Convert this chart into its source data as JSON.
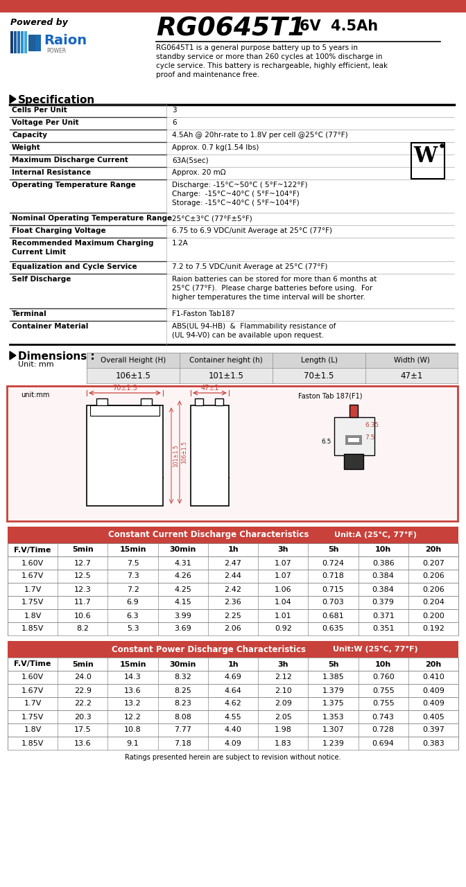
{
  "bg_color": "#ffffff",
  "red_bar_color": "#c8413a",
  "table_header_bg": "#c8413a",
  "dim_box_border": "#c8413a",
  "title_model": "RG0645T1",
  "title_voltage": "6V  4.5Ah",
  "powered_by": "Powered by",
  "description": "RG0645T1 is a general purpose battery up to 5 years in\nstandby service or more than 260 cycles at 100% discharge in\ncycle service. This battery is rechargeable, highly efficient, leak\nproof and maintenance free.",
  "spec_title": "Specification",
  "spec_rows": [
    [
      "Cells Per Unit",
      "3"
    ],
    [
      "Voltage Per Unit",
      "6"
    ],
    [
      "Capacity",
      "4.5Ah @ 20hr-rate to 1.8V per cell @25°C (77°F)"
    ],
    [
      "Weight",
      "Approx. 0.7 kg(1.54 lbs)"
    ],
    [
      "Maximum Discharge Current",
      "63A(5sec)"
    ],
    [
      "Internal Resistance",
      "Approx. 20 mΩ"
    ],
    [
      "Operating Temperature Range",
      "Discharge: -15°C~50°C ( 5°F~122°F)\nCharge:  -15°C~40°C ( 5°F~104°F)\nStorage: -15°C~40°C ( 5°F~104°F)"
    ],
    [
      "Nominal Operating Temperature Range",
      "25°C±3°C (77°F±5°F)"
    ],
    [
      "Float Charging Voltage",
      "6.75 to 6.9 VDC/unit Average at 25°C (77°F)"
    ],
    [
      "Recommended Maximum Charging\nCurrent Limit",
      "1.2A"
    ],
    [
      "Equalization and Cycle Service",
      "7.2 to 7.5 VDC/unit Average at 25°C (77°F)"
    ],
    [
      "Self Discharge",
      "Raion batteries can be stored for more than 6 months at\n25°C (77°F).  Please charge batteries before using.  For\nhigher temperatures the time interval will be shorter."
    ],
    [
      "Terminal",
      "F1-Faston Tab187"
    ],
    [
      "Container Material",
      "ABS(UL 94-HB)  &  Flammability resistance of\n(UL 94-V0) can be available upon request."
    ]
  ],
  "spec_row_heights": [
    18,
    18,
    18,
    18,
    18,
    18,
    48,
    18,
    18,
    34,
    18,
    50,
    18,
    34
  ],
  "dim_title": "Dimensions :",
  "dim_unit": "Unit: mm",
  "dim_headers": [
    "Overall Height (H)",
    "Container height (h)",
    "Length (L)",
    "Width (W)"
  ],
  "dim_values": [
    "106±1.5",
    "101±1.5",
    "70±1.5",
    "47±1"
  ],
  "cc_title": "Constant Current Discharge Characteristics",
  "cc_unit": "Unit:A (25°C, 77°F)",
  "cc_headers": [
    "F.V/Time",
    "5min",
    "15min",
    "30min",
    "1h",
    "3h",
    "5h",
    "10h",
    "20h"
  ],
  "cc_rows": [
    [
      "1.60V",
      "12.7",
      "7.5",
      "4.31",
      "2.47",
      "1.07",
      "0.724",
      "0.386",
      "0.207"
    ],
    [
      "1.67V",
      "12.5",
      "7.3",
      "4.26",
      "2.44",
      "1.07",
      "0.718",
      "0.384",
      "0.206"
    ],
    [
      "1.7V",
      "12.3",
      "7.2",
      "4.25",
      "2.42",
      "1.06",
      "0.715",
      "0.384",
      "0.206"
    ],
    [
      "1.75V",
      "11.7",
      "6.9",
      "4.15",
      "2.36",
      "1.04",
      "0.703",
      "0.379",
      "0.204"
    ],
    [
      "1.8V",
      "10.6",
      "6.3",
      "3.99",
      "2.25",
      "1.01",
      "0.681",
      "0.371",
      "0.200"
    ],
    [
      "1.85V",
      "8.2",
      "5.3",
      "3.69",
      "2.06",
      "0.92",
      "0.635",
      "0.351",
      "0.192"
    ]
  ],
  "cp_title": "Constant Power Discharge Characteristics",
  "cp_unit": "Unit:W (25°C, 77°F)",
  "cp_headers": [
    "F.V/Time",
    "5min",
    "15min",
    "30min",
    "1h",
    "3h",
    "5h",
    "10h",
    "20h"
  ],
  "cp_rows": [
    [
      "1.60V",
      "24.0",
      "14.3",
      "8.32",
      "4.69",
      "2.12",
      "1.385",
      "0.760",
      "0.410"
    ],
    [
      "1.67V",
      "22.9",
      "13.6",
      "8.25",
      "4.64",
      "2.10",
      "1.379",
      "0.755",
      "0.409"
    ],
    [
      "1.7V",
      "22.2",
      "13.2",
      "8.23",
      "4.62",
      "2.09",
      "1.375",
      "0.755",
      "0.409"
    ],
    [
      "1.75V",
      "20.3",
      "12.2",
      "8.08",
      "4.55",
      "2.05",
      "1.353",
      "0.743",
      "0.405"
    ],
    [
      "1.8V",
      "17.5",
      "10.8",
      "7.77",
      "4.40",
      "1.98",
      "1.307",
      "0.728",
      "0.397"
    ],
    [
      "1.85V",
      "13.6",
      "9.1",
      "7.18",
      "4.09",
      "1.83",
      "1.239",
      "0.694",
      "0.383"
    ]
  ],
  "footer": "Ratings presented herein are subject to revision without notice.",
  "raion_blue": "#1565c0",
  "raion_light_blue": "#42a5f5"
}
